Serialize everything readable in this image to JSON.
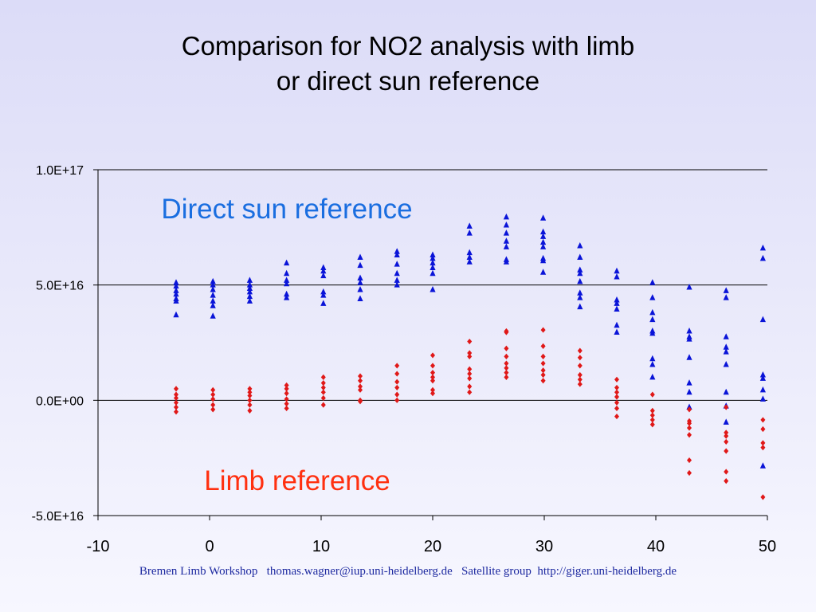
{
  "slide": {
    "title_line1": "Comparison for NO2 analysis with limb",
    "title_line2": "or direct sun reference",
    "footer": "Bremen Limb Workshop   thomas.wagner@iup.uni-heidelberg.de   Satellite group  http://giger.uni-heidelberg.de"
  },
  "colors": {
    "direct_sun": "#0a14d8",
    "limb": "#e01818",
    "direct_label": "#1a6ee0",
    "limb_label": "#ff3010",
    "axis": "#000000"
  },
  "chart_data": {
    "type": "scatter",
    "title": "",
    "xlabel": "",
    "ylabel": "",
    "xlim": [
      -10,
      50
    ],
    "ylim": [
      -5e+16,
      1e+17
    ],
    "xticks": [
      -10,
      0,
      10,
      20,
      30,
      40,
      50
    ],
    "xtick_labels": [
      "-10",
      "0",
      "10",
      "20",
      "30",
      "40",
      "50"
    ],
    "yticks": [
      -5e+16,
      0,
      5e+16,
      1e+17
    ],
    "ytick_labels": [
      "-5.0E+16",
      "0.0E+00",
      "5.0E+16",
      "1.0E+17"
    ],
    "gridlines_y": [
      0,
      5e+16,
      1e+17
    ],
    "annotations": [
      {
        "text": "Direct sun reference",
        "series": "direct_sun"
      },
      {
        "text": "Limb reference",
        "series": "limb"
      }
    ],
    "series": [
      {
        "key": "direct_sun",
        "marker": "triangle",
        "points": [
          [
            -3.0,
            5.1e+16
          ],
          [
            -3.0,
            4.95e+16
          ],
          [
            -3.0,
            4.75e+16
          ],
          [
            -3.0,
            4.6e+16
          ],
          [
            -3.0,
            4.4e+16
          ],
          [
            -3.0,
            4.3e+16
          ],
          [
            -3.0,
            3.7e+16
          ],
          [
            0.3,
            5.15e+16
          ],
          [
            0.3,
            5e+16
          ],
          [
            0.3,
            4.8e+16
          ],
          [
            0.3,
            4.55e+16
          ],
          [
            0.3,
            4.3e+16
          ],
          [
            0.3,
            4.1e+16
          ],
          [
            0.3,
            3.65e+16
          ],
          [
            3.6,
            5.2e+16
          ],
          [
            3.6,
            5e+16
          ],
          [
            3.6,
            4.85e+16
          ],
          [
            3.6,
            4.7e+16
          ],
          [
            3.6,
            4.5e+16
          ],
          [
            3.6,
            4.3e+16
          ],
          [
            6.9,
            5.95e+16
          ],
          [
            6.9,
            5.5e+16
          ],
          [
            6.9,
            5.2e+16
          ],
          [
            6.9,
            5.05e+16
          ],
          [
            6.9,
            4.6e+16
          ],
          [
            6.9,
            4.45e+16
          ],
          [
            10.2,
            5.75e+16
          ],
          [
            10.2,
            5.6e+16
          ],
          [
            10.2,
            5.4e+16
          ],
          [
            10.2,
            4.7e+16
          ],
          [
            10.2,
            4.55e+16
          ],
          [
            10.2,
            4.2e+16
          ],
          [
            13.5,
            6.2e+16
          ],
          [
            13.5,
            5.85e+16
          ],
          [
            13.5,
            5.3e+16
          ],
          [
            13.5,
            5.1e+16
          ],
          [
            13.5,
            4.8e+16
          ],
          [
            13.5,
            4.4e+16
          ],
          [
            16.8,
            6.45e+16
          ],
          [
            16.8,
            6.3e+16
          ],
          [
            16.8,
            5.9e+16
          ],
          [
            16.8,
            5.5e+16
          ],
          [
            16.8,
            5.2e+16
          ],
          [
            16.8,
            5e+16
          ],
          [
            20.0,
            6.3e+16
          ],
          [
            20.0,
            6.15e+16
          ],
          [
            20.0,
            5.95e+16
          ],
          [
            20.0,
            5.75e+16
          ],
          [
            20.0,
            5.5e+16
          ],
          [
            20.0,
            4.8e+16
          ],
          [
            23.3,
            7.55e+16
          ],
          [
            23.3,
            7.25e+16
          ],
          [
            23.3,
            6.4e+16
          ],
          [
            23.3,
            6.2e+16
          ],
          [
            23.3,
            6e+16
          ],
          [
            26.6,
            7.95e+16
          ],
          [
            26.6,
            7.6e+16
          ],
          [
            26.6,
            7.25e+16
          ],
          [
            26.6,
            6.9e+16
          ],
          [
            26.6,
            6.65e+16
          ],
          [
            26.6,
            6.1e+16
          ],
          [
            26.6,
            6e+16
          ],
          [
            29.9,
            7.9e+16
          ],
          [
            29.9,
            7.3e+16
          ],
          [
            29.9,
            7.1e+16
          ],
          [
            29.9,
            6.85e+16
          ],
          [
            29.9,
            6.65e+16
          ],
          [
            29.9,
            6.15e+16
          ],
          [
            29.9,
            6.05e+16
          ],
          [
            29.9,
            5.55e+16
          ],
          [
            33.2,
            6.7e+16
          ],
          [
            33.2,
            6.2e+16
          ],
          [
            33.2,
            5.65e+16
          ],
          [
            33.2,
            5.5e+16
          ],
          [
            33.2,
            5.15e+16
          ],
          [
            33.2,
            4.65e+16
          ],
          [
            33.2,
            4.45e+16
          ],
          [
            33.2,
            4.05e+16
          ],
          [
            36.5,
            5.6e+16
          ],
          [
            36.5,
            5.35e+16
          ],
          [
            36.5,
            4.35e+16
          ],
          [
            36.5,
            4.2e+16
          ],
          [
            36.5,
            3.95e+16
          ],
          [
            36.5,
            3.25e+16
          ],
          [
            36.5,
            2.95e+16
          ],
          [
            39.7,
            5.1e+16
          ],
          [
            39.7,
            4.45e+16
          ],
          [
            39.7,
            3.8e+16
          ],
          [
            39.7,
            3.5e+16
          ],
          [
            39.7,
            3e+16
          ],
          [
            39.7,
            2.9e+16
          ],
          [
            39.7,
            1.8e+16
          ],
          [
            39.7,
            1.55e+16
          ],
          [
            39.7,
            1e+16
          ],
          [
            43.0,
            4.9e+16
          ],
          [
            43.0,
            3e+16
          ],
          [
            43.0,
            2.75e+16
          ],
          [
            43.0,
            2.65e+16
          ],
          [
            43.0,
            1.85e+16
          ],
          [
            43.0,
            7500000000000000.0
          ],
          [
            43.0,
            3500000000000000.0
          ],
          [
            43.0,
            -3000000000000000.0
          ],
          [
            46.3,
            4.75e+16
          ],
          [
            46.3,
            4.45e+16
          ],
          [
            46.3,
            2.75e+16
          ],
          [
            46.3,
            2.3e+16
          ],
          [
            46.3,
            2.1e+16
          ],
          [
            46.3,
            1.55e+16
          ],
          [
            46.3,
            3500000000000000.0
          ],
          [
            46.3,
            -2500000000000000.0
          ],
          [
            46.3,
            -9500000000000000.0
          ],
          [
            49.6,
            6.6e+16
          ],
          [
            49.6,
            6.15e+16
          ],
          [
            49.6,
            3.5e+16
          ],
          [
            49.6,
            1.1e+16
          ],
          [
            49.6,
            9500000000000000.0
          ],
          [
            49.6,
            4500000000000000.0
          ],
          [
            49.6,
            500000000000000.0
          ],
          [
            49.6,
            -2.85e+16
          ]
        ]
      },
      {
        "key": "limb",
        "marker": "diamond",
        "points": [
          [
            -3.0,
            5000000000000000.0
          ],
          [
            -3.0,
            2500000000000000.0
          ],
          [
            -3.0,
            1000000000000000.0
          ],
          [
            -3.0,
            -1000000000000000.0
          ],
          [
            -3.0,
            -3000000000000000.0
          ],
          [
            -3.0,
            -5000000000000000.0
          ],
          [
            0.3,
            4500000000000000.0
          ],
          [
            0.3,
            2500000000000000.0
          ],
          [
            0.3,
            500000000000000.0
          ],
          [
            0.3,
            -2000000000000000.0
          ],
          [
            0.3,
            -4000000000000000.0
          ],
          [
            3.6,
            5000000000000000.0
          ],
          [
            3.6,
            3500000000000000.0
          ],
          [
            3.6,
            2000000000000000.0
          ],
          [
            3.6,
            0.0
          ],
          [
            3.6,
            -2000000000000000.0
          ],
          [
            3.6,
            -4500000000000000.0
          ],
          [
            6.9,
            6500000000000000.0
          ],
          [
            6.9,
            5000000000000000.0
          ],
          [
            6.9,
            3000000000000000.0
          ],
          [
            6.9,
            500000000000000.0
          ],
          [
            6.9,
            -1500000000000000.0
          ],
          [
            6.9,
            -3500000000000000.0
          ],
          [
            10.2,
            1e+16
          ],
          [
            10.2,
            7500000000000000.0
          ],
          [
            10.2,
            5500000000000000.0
          ],
          [
            10.2,
            3500000000000000.0
          ],
          [
            10.2,
            1000000000000000.0
          ],
          [
            10.2,
            -2000000000000000.0
          ],
          [
            13.5,
            1.05e+16
          ],
          [
            13.5,
            8500000000000000.0
          ],
          [
            13.5,
            6000000000000000.0
          ],
          [
            13.5,
            4500000000000000.0
          ],
          [
            13.5,
            0.0
          ],
          [
            13.5,
            -500000000000000.0
          ],
          [
            16.8,
            1.5e+16
          ],
          [
            16.8,
            1.15e+16
          ],
          [
            16.8,
            8000000000000000.0
          ],
          [
            16.8,
            5500000000000000.0
          ],
          [
            16.8,
            2500000000000000.0
          ],
          [
            16.8,
            0.0
          ],
          [
            20.0,
            1.95e+16
          ],
          [
            20.0,
            1.5e+16
          ],
          [
            20.0,
            1.2e+16
          ],
          [
            20.0,
            1e+16
          ],
          [
            20.0,
            8500000000000000.0
          ],
          [
            20.0,
            4500000000000000.0
          ],
          [
            20.0,
            3000000000000000.0
          ],
          [
            23.3,
            2.55e+16
          ],
          [
            23.3,
            2.05e+16
          ],
          [
            23.3,
            1.9e+16
          ],
          [
            23.3,
            1.35e+16
          ],
          [
            23.3,
            1.15e+16
          ],
          [
            23.3,
            9500000000000000.0
          ],
          [
            23.3,
            6000000000000000.0
          ],
          [
            23.3,
            3500000000000000.0
          ],
          [
            26.6,
            3e+16
          ],
          [
            26.6,
            2.95e+16
          ],
          [
            26.6,
            2.25e+16
          ],
          [
            26.6,
            1.9e+16
          ],
          [
            26.6,
            1.6e+16
          ],
          [
            26.6,
            1.4e+16
          ],
          [
            26.6,
            1.2e+16
          ],
          [
            26.6,
            1e+16
          ],
          [
            29.9,
            3.05e+16
          ],
          [
            29.9,
            2.35e+16
          ],
          [
            29.9,
            1.9e+16
          ],
          [
            29.9,
            1.6e+16
          ],
          [
            29.9,
            1.3e+16
          ],
          [
            29.9,
            1.1e+16
          ],
          [
            29.9,
            8500000000000000.0
          ],
          [
            33.2,
            2.15e+16
          ],
          [
            33.2,
            1.85e+16
          ],
          [
            33.2,
            1.5e+16
          ],
          [
            33.2,
            1.1e+16
          ],
          [
            33.2,
            9000000000000000.0
          ],
          [
            33.2,
            7000000000000000.0
          ],
          [
            36.5,
            9000000000000000.0
          ],
          [
            36.5,
            5500000000000000.0
          ],
          [
            36.5,
            3500000000000000.0
          ],
          [
            36.5,
            1500000000000000.0
          ],
          [
            36.5,
            -1000000000000000.0
          ],
          [
            36.5,
            -3500000000000000.0
          ],
          [
            36.5,
            -7000000000000000.0
          ],
          [
            39.7,
            2500000000000000.0
          ],
          [
            39.7,
            -4500000000000000.0
          ],
          [
            39.7,
            -6500000000000000.0
          ],
          [
            39.7,
            -8500000000000000.0
          ],
          [
            39.7,
            -1.05e+16
          ],
          [
            43.0,
            -4000000000000000.0
          ],
          [
            43.0,
            -9000000000000000.0
          ],
          [
            43.0,
            -1e+16
          ],
          [
            43.0,
            -1.2e+16
          ],
          [
            43.0,
            -1.5e+16
          ],
          [
            43.0,
            -2.6e+16
          ],
          [
            43.0,
            -3.15e+16
          ],
          [
            46.3,
            -3000000000000000.0
          ],
          [
            46.3,
            -1.4e+16
          ],
          [
            46.3,
            -1.55e+16
          ],
          [
            46.3,
            -1.8e+16
          ],
          [
            46.3,
            -2.2e+16
          ],
          [
            46.3,
            -3.1e+16
          ],
          [
            46.3,
            -3.5e+16
          ],
          [
            49.6,
            -8500000000000000.0
          ],
          [
            49.6,
            -1.25e+16
          ],
          [
            49.6,
            -1.85e+16
          ],
          [
            49.6,
            -2.05e+16
          ],
          [
            49.6,
            -4.2e+16
          ]
        ]
      }
    ]
  }
}
